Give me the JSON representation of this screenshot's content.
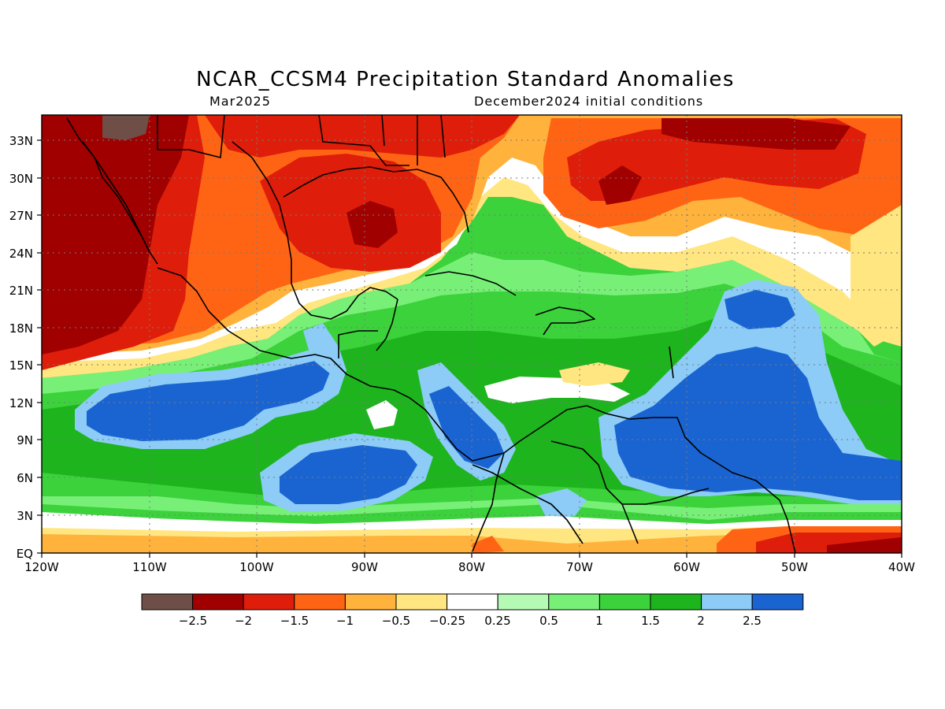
{
  "title": "NCAR_CCSM4 Precipitation Standard Anomalies",
  "subtitle_left": "Mar2025",
  "subtitle_right": "December2024 initial conditions",
  "lat_labels": [
    "33N",
    "30N",
    "27N",
    "24N",
    "21N",
    "18N",
    "15N",
    "12N",
    "9N",
    "6N",
    "3N",
    "EQ"
  ],
  "lon_labels": [
    "120W",
    "110W",
    "100W",
    "90W",
    "80W",
    "70W",
    "60W",
    "50W",
    "40W"
  ],
  "legend": {
    "colors": [
      "#6e4e46",
      "#a00000",
      "#de1e0a",
      "#ff6414",
      "#ffb23c",
      "#ffe680",
      "#ffffff",
      "#b4fab4",
      "#78f078",
      "#3cd23c",
      "#1eb41e",
      "#8cccf6",
      "#1a64d2"
    ],
    "labels": [
      "−2.5",
      "−2",
      "−1.5",
      "−1",
      "−0.5",
      "−0.25",
      "0.25",
      "0.5",
      "1",
      "1.5",
      "2",
      "2.5"
    ]
  }
}
